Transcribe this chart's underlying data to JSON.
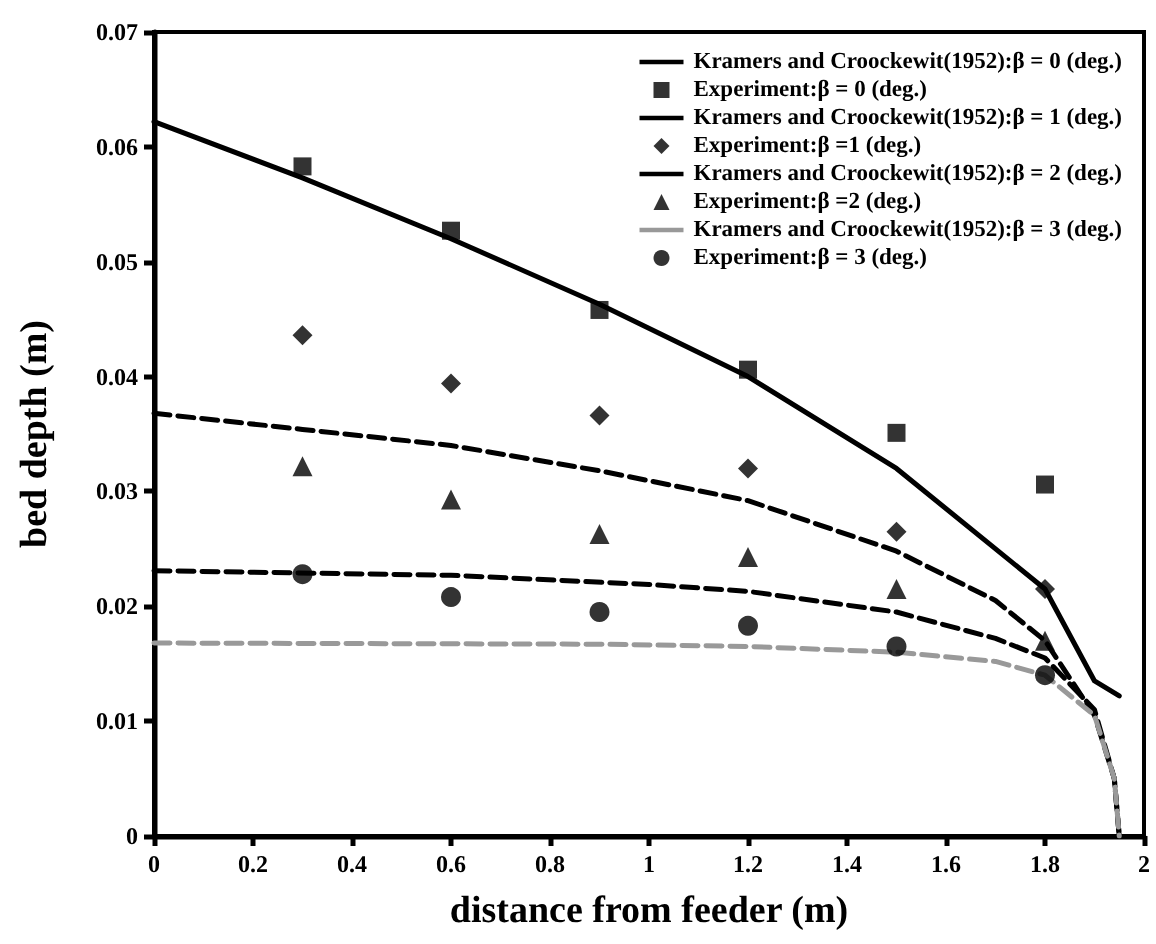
{
  "chart_data": {
    "type": "line",
    "xlabel": "distance from feeder (m)",
    "ylabel": "bed depth (m)",
    "xlim": [
      0,
      2
    ],
    "xticks": [
      0,
      0.2,
      0.4,
      0.6,
      0.8,
      1,
      1.2,
      1.4,
      1.6,
      1.8,
      2
    ],
    "ylim": [
      0,
      0.07
    ],
    "yticks": [
      0,
      0.01,
      0.02,
      0.03,
      0.04,
      0.05,
      0.06,
      0.07
    ],
    "grid": false,
    "legend": "top right",
    "series": [
      {
        "name": "Kramers and Croockewit(1952):β = 0 (deg.)",
        "color": "#000000",
        "line_style": "solid",
        "marker": "none",
        "x": [
          0,
          0.3,
          0.6,
          0.9,
          1.2,
          1.5,
          1.8,
          1.9,
          1.95
        ],
        "values": [
          0.0622,
          0.0573,
          0.052,
          0.0463,
          0.04,
          0.032,
          0.0215,
          0.0135,
          0.0122
        ]
      },
      {
        "name": "Experiment:β = 0 (deg.)",
        "type": "scatter",
        "color": "#000000",
        "marker": "square",
        "x": [
          0.3,
          0.6,
          0.9,
          1.2,
          1.5,
          1.8
        ],
        "values": [
          0.0583,
          0.0527,
          0.0458,
          0.0406,
          0.0351,
          0.0306
        ]
      },
      {
        "name": "Kramers and Croockewit(1952):β = 1 (deg.)",
        "color": "#000000",
        "line_style": "dashed",
        "marker": "none",
        "x": [
          0,
          0.3,
          0.6,
          0.9,
          1.2,
          1.5,
          1.7,
          1.8,
          1.9,
          1.94,
          1.95
        ],
        "values": [
          0.0368,
          0.0354,
          0.034,
          0.0318,
          0.0292,
          0.0248,
          0.0205,
          0.017,
          0.0105,
          0.005,
          0
        ]
      },
      {
        "name": "Experiment:β =1 (deg.)",
        "type": "scatter",
        "color": "#000000",
        "marker": "diamond",
        "x": [
          0.3,
          0.6,
          0.9,
          1.2,
          1.5,
          1.8
        ],
        "values": [
          0.0436,
          0.0394,
          0.0366,
          0.032,
          0.0265,
          0.0215
        ]
      },
      {
        "name": "Kramers and Croockewit(1952):β = 2 (deg.)",
        "color": "#000000",
        "line_style": "dashed",
        "marker": "none",
        "x": [
          0,
          0.6,
          1,
          1.2,
          1.5,
          1.7,
          1.8,
          1.9,
          1.94,
          1.95
        ],
        "values": [
          0.0231,
          0.0227,
          0.0219,
          0.0213,
          0.0195,
          0.0172,
          0.0155,
          0.011,
          0.005,
          0
        ]
      },
      {
        "name": "Experiment:β =2 (deg.)",
        "type": "scatter",
        "color": "#000000",
        "marker": "triangle",
        "x": [
          0.3,
          0.6,
          0.9,
          1.2,
          1.5,
          1.8
        ],
        "values": [
          0.0322,
          0.0293,
          0.0263,
          0.0243,
          0.0215,
          0.017
        ]
      },
      {
        "name": "Kramers and Croockewit(1952):β = 3 (deg.)",
        "color": "#999999",
        "line_style": "dashed",
        "marker": "none",
        "x": [
          0,
          0.9,
          1.2,
          1.5,
          1.7,
          1.8,
          1.9,
          1.94,
          1.95
        ],
        "values": [
          0.0168,
          0.0167,
          0.0165,
          0.016,
          0.0152,
          0.014,
          0.0105,
          0.005,
          0
        ]
      },
      {
        "name": "Experiment:β = 3 (deg.)",
        "type": "scatter",
        "color": "#000000",
        "marker": "circle",
        "x": [
          0.3,
          0.6,
          0.9,
          1.2,
          1.5,
          1.8
        ],
        "values": [
          0.0228,
          0.0208,
          0.0195,
          0.0183,
          0.0165,
          0.014
        ]
      }
    ]
  }
}
